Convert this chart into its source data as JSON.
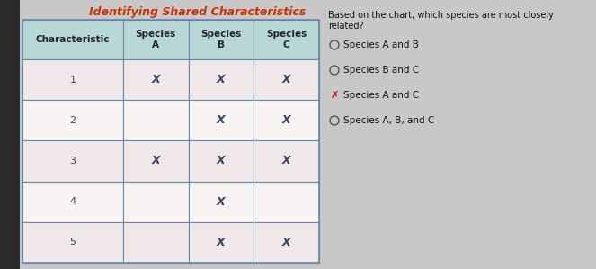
{
  "title": "Identifying Shared Characteristics",
  "question_line1": "Based on the chart, which species are most closely",
  "question_line2": "related?",
  "col_headers": [
    "Characteristic",
    "Species\nA",
    "Species\nB",
    "Species\nC"
  ],
  "rows": [
    {
      "char": "1",
      "A": true,
      "B": true,
      "C": true
    },
    {
      "char": "2",
      "A": false,
      "B": true,
      "C": true
    },
    {
      "char": "3",
      "A": true,
      "B": true,
      "C": true
    },
    {
      "char": "4",
      "A": false,
      "B": true,
      "C": false
    },
    {
      "char": "5",
      "A": false,
      "B": true,
      "C": true
    }
  ],
  "options": [
    {
      "text": "Species A and B",
      "selected": false
    },
    {
      "text": "Species B and C",
      "selected": false
    },
    {
      "text": "Species A and C",
      "selected": true
    },
    {
      "text": "Species A, B, and C",
      "selected": false
    }
  ],
  "header_bg": "#b8d8d8",
  "row_bg_alt": "#f0e8e8",
  "row_bg_white": "#f8f4f4",
  "table_border_color": "#6688aa",
  "title_color": "#cc3300",
  "selected_color": "#cc0000",
  "x_color": "#334466",
  "bg_left": "#2a2a2a",
  "bg_right": "#c8c8c8",
  "table_bg": "#e8e4e4"
}
